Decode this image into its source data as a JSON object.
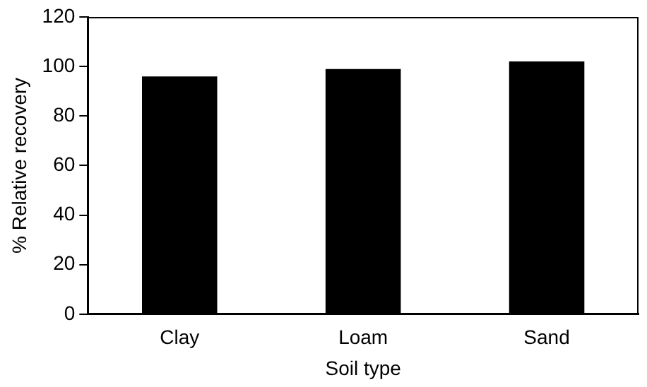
{
  "chart_data": {
    "type": "bar",
    "xlabel": "Soil type",
    "ylabel": "% Relative recovery",
    "categories": [
      "Clay",
      "Loam",
      "Sand"
    ],
    "values": [
      96,
      99,
      102
    ],
    "color": "#000000",
    "ylim": [
      0,
      120
    ],
    "yticks": [
      0,
      20,
      40,
      60,
      80,
      100,
      120
    ],
    "grid": false,
    "legend": false
  }
}
